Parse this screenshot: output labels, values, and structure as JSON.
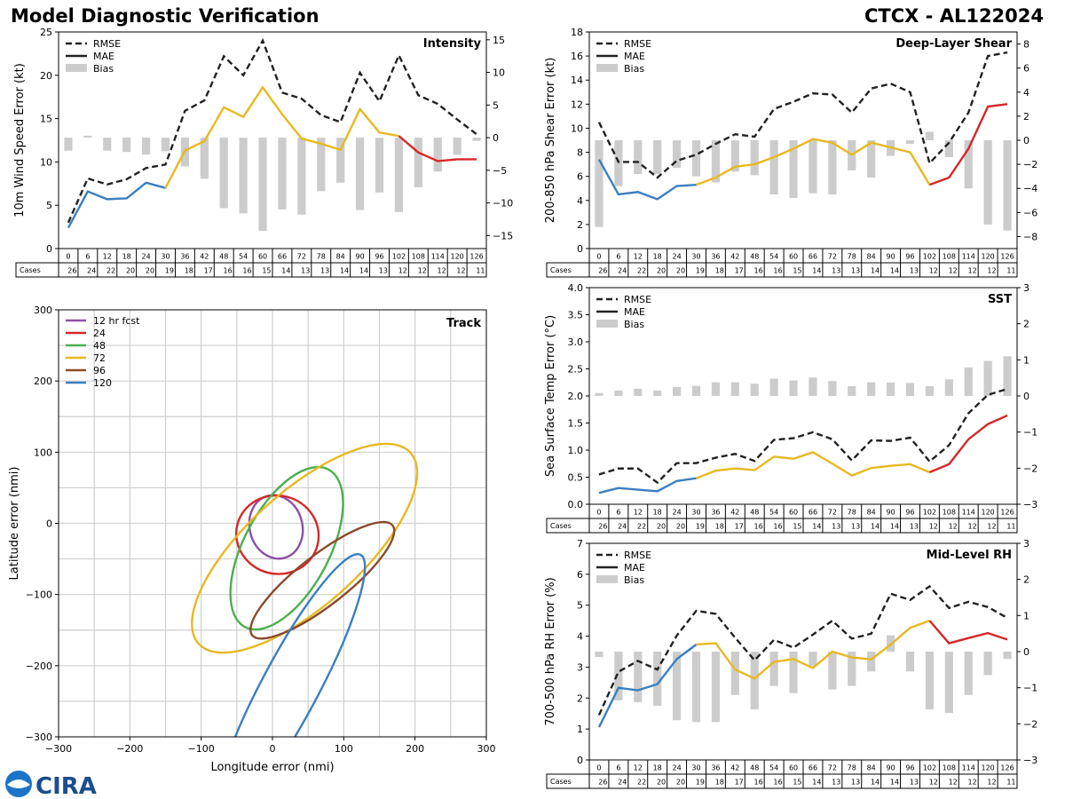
{
  "page": {
    "title": "Model Diagnostic Verification",
    "storm": "CTCX - AL122024",
    "logo_text": "CIRA"
  },
  "colors": {
    "rmse": "#222222",
    "bias": "#cccccc",
    "mae_early": "#3a7fc0",
    "mae_mid": "#e8b820",
    "mae_late": "#d62728",
    "track": [
      "#8e4ea8",
      "#d62728",
      "#4caf50",
      "#e8b820",
      "#8b4a2b",
      "#3a7fc0"
    ]
  },
  "chart_data": [
    {
      "id": "intensity",
      "type": "line+bar",
      "title": "Intensity",
      "ylabel": "10m Wind Speed Error (kt)",
      "ylim": [
        0,
        25
      ],
      "yticks": [
        0,
        5,
        10,
        15,
        20,
        25
      ],
      "y2lim": [
        -17,
        16.2
      ],
      "y2ticks": [
        -15,
        -10,
        -5,
        0,
        5,
        10,
        15
      ],
      "legend": [
        "RMSE",
        "MAE",
        "Bias"
      ],
      "legend_position": "top-left",
      "hours": [
        0,
        6,
        12,
        18,
        24,
        30,
        36,
        42,
        48,
        54,
        60,
        66,
        72,
        78,
        84,
        90,
        96,
        102,
        108,
        114,
        120,
        126
      ],
      "cases": [
        26,
        24,
        22,
        20,
        20,
        19,
        18,
        17,
        16,
        16,
        15,
        14,
        13,
        13,
        14,
        14,
        13,
        12,
        12,
        12,
        12,
        11
      ],
      "cases_label": "Cases",
      "rmse": [
        3.0,
        8.1,
        7.4,
        8.0,
        9.3,
        9.7,
        15.9,
        17.1,
        22.2,
        20.0,
        24.0,
        18.0,
        17.3,
        15.4,
        14.6,
        20.3,
        17.0,
        22.3,
        17.7,
        16.7,
        14.9,
        13.2
      ],
      "mae": [
        2.4,
        6.6,
        5.7,
        5.8,
        7.6,
        7.0,
        11.3,
        12.4,
        16.3,
        15.2,
        18.6,
        15.5,
        12.7,
        12.1,
        11.4,
        16.1,
        13.4,
        13.0,
        11.1,
        10.1,
        10.3,
        10.3
      ],
      "bias": [
        -2.0,
        0.3,
        -2.0,
        -2.2,
        -2.6,
        -2.1,
        -4.4,
        -6.3,
        -10.8,
        -11.6,
        -14.3,
        -11.0,
        -11.8,
        -8.2,
        -6.9,
        -11.1,
        -8.4,
        -11.4,
        -7.6,
        -5.2,
        -2.6,
        -0.5
      ]
    },
    {
      "id": "shear",
      "type": "line+bar",
      "title": "Deep-Layer Shear",
      "ylabel": "200-850 hPa Shear Error (kt)",
      "ylim": [
        0,
        18
      ],
      "yticks": [
        0,
        2,
        4,
        6,
        8,
        10,
        12,
        14,
        16,
        18
      ],
      "y2lim": [
        -9,
        9
      ],
      "y2ticks": [
        -8,
        -6,
        -4,
        -2,
        0,
        2,
        4,
        6,
        8
      ],
      "legend": [
        "RMSE",
        "MAE",
        "Bias"
      ],
      "legend_position": "top-left",
      "hours": [
        0,
        6,
        12,
        18,
        24,
        30,
        36,
        42,
        48,
        54,
        60,
        66,
        72,
        78,
        84,
        90,
        96,
        102,
        108,
        114,
        120,
        126
      ],
      "cases": [
        26,
        24,
        22,
        20,
        20,
        19,
        18,
        17,
        16,
        16,
        15,
        14,
        13,
        13,
        14,
        14,
        13,
        12,
        12,
        12,
        12,
        11
      ],
      "cases_label": "Cases",
      "rmse": [
        10.5,
        7.2,
        7.2,
        5.9,
        7.3,
        7.8,
        8.7,
        9.5,
        9.3,
        11.6,
        12.2,
        12.9,
        12.8,
        11.3,
        13.3,
        13.7,
        13.0,
        7.1,
        8.8,
        11.3,
        16.0,
        16.3
      ],
      "mae": [
        7.4,
        4.5,
        4.7,
        4.1,
        5.2,
        5.3,
        5.9,
        6.8,
        7.0,
        7.6,
        8.3,
        9.1,
        8.8,
        7.8,
        8.8,
        8.4,
        8.0,
        5.3,
        5.9,
        8.3,
        11.8,
        12.0
      ],
      "bias": [
        -7.2,
        -3.8,
        -2.8,
        -2.8,
        -2.3,
        -3.0,
        -3.5,
        -2.6,
        -2.9,
        -4.5,
        -4.8,
        -4.4,
        -4.5,
        -2.5,
        -3.1,
        -1.3,
        -0.3,
        0.7,
        -1.4,
        -4.0,
        -7.0,
        -7.5
      ]
    },
    {
      "id": "sst",
      "type": "line+bar",
      "title": "SST",
      "ylabel": "Sea Surface Temp Error (°C)",
      "ylim": [
        0,
        4
      ],
      "yticks": [
        "0.0",
        "0.5",
        "1.0",
        "1.5",
        "2.0",
        "2.5",
        "3.0",
        "3.5",
        "4.0"
      ],
      "y2lim": [
        -3,
        3
      ],
      "y2ticks": [
        -3,
        -2,
        -1,
        0,
        1,
        2,
        3
      ],
      "legend": [
        "RMSE",
        "MAE",
        "Bias"
      ],
      "legend_position": "top-left",
      "hours": [
        0,
        6,
        12,
        18,
        24,
        30,
        36,
        42,
        48,
        54,
        60,
        66,
        72,
        78,
        84,
        90,
        96,
        102,
        108,
        114,
        120,
        126
      ],
      "cases": [
        26,
        24,
        22,
        20,
        20,
        19,
        18,
        17,
        16,
        16,
        15,
        14,
        13,
        13,
        14,
        14,
        13,
        12,
        12,
        12,
        12,
        11
      ],
      "cases_label": "Cases",
      "rmse": [
        0.55,
        0.66,
        0.66,
        0.4,
        0.76,
        0.76,
        0.86,
        0.93,
        0.8,
        1.19,
        1.22,
        1.33,
        1.2,
        0.81,
        1.18,
        1.17,
        1.23,
        0.79,
        1.09,
        1.68,
        2.02,
        2.13
      ],
      "mae": [
        0.21,
        0.3,
        0.27,
        0.24,
        0.43,
        0.48,
        0.62,
        0.66,
        0.63,
        0.88,
        0.84,
        0.96,
        0.75,
        0.53,
        0.67,
        0.71,
        0.74,
        0.59,
        0.74,
        1.2,
        1.48,
        1.64
      ],
      "bias": [
        0.08,
        0.15,
        0.2,
        0.15,
        0.25,
        0.28,
        0.38,
        0.38,
        0.34,
        0.48,
        0.43,
        0.51,
        0.41,
        0.27,
        0.38,
        0.37,
        0.36,
        0.27,
        0.46,
        0.79,
        0.97,
        1.1
      ]
    },
    {
      "id": "rh",
      "type": "line+bar",
      "title": "Mid-Level RH",
      "ylabel": "700-500 hPa RH Error (%)",
      "ylim": [
        0,
        7
      ],
      "yticks": [
        0,
        1,
        2,
        3,
        4,
        5,
        6,
        7
      ],
      "y2lim": [
        -3,
        3
      ],
      "y2ticks": [
        -3,
        -2,
        -1,
        0,
        1,
        2,
        3
      ],
      "legend": [
        "RMSE",
        "MAE",
        "Bias"
      ],
      "legend_position": "top-left",
      "hours": [
        0,
        6,
        12,
        18,
        24,
        30,
        36,
        42,
        48,
        54,
        60,
        66,
        72,
        78,
        84,
        90,
        96,
        102,
        108,
        114,
        120,
        126
      ],
      "cases": [
        26,
        24,
        22,
        20,
        20,
        19,
        18,
        17,
        16,
        16,
        15,
        14,
        13,
        13,
        14,
        14,
        13,
        12,
        12,
        12,
        12,
        11
      ],
      "cases_label": "Cases",
      "rmse": [
        1.45,
        2.85,
        3.2,
        2.92,
        4.02,
        4.82,
        4.72,
        3.95,
        3.22,
        3.88,
        3.63,
        4.05,
        4.5,
        3.92,
        4.08,
        5.37,
        5.17,
        5.61,
        4.91,
        5.11,
        4.94,
        4.59
      ],
      "mae": [
        1.06,
        2.33,
        2.25,
        2.45,
        3.26,
        3.73,
        3.77,
        2.92,
        2.63,
        3.17,
        3.26,
        2.97,
        3.5,
        3.31,
        3.25,
        3.73,
        4.27,
        4.5,
        3.77,
        3.94,
        4.1,
        3.89
      ],
      "bias": [
        -0.15,
        -1.35,
        -1.4,
        -1.5,
        -1.9,
        -1.95,
        -1.95,
        -1.2,
        -1.6,
        -0.95,
        -1.15,
        -0.4,
        -1.05,
        -0.95,
        -0.55,
        0.45,
        -0.55,
        -1.6,
        -1.7,
        -1.2,
        -0.65,
        -0.2
      ]
    },
    {
      "id": "track",
      "type": "ellipse",
      "title": "Track",
      "xlabel": "Longitude error (nmi)",
      "ylabel": "Latitude error (nmi)",
      "xlim": [
        -300,
        300
      ],
      "ylim": [
        -300,
        300
      ],
      "xticks": [
        "−300",
        "−200",
        "−100",
        "0",
        "100",
        "200",
        "300"
      ],
      "yticks": [
        "−300",
        "−200",
        "−100",
        "0",
        "100",
        "200",
        "300"
      ],
      "grid": true,
      "legend": [
        "12 hr fcst",
        "24",
        "48",
        "72",
        "96",
        "120"
      ],
      "legend_position": "top-left",
      "ellipses": [
        {
          "label": "12 hr fcst",
          "cx": 5,
          "cy": -5,
          "a": 45,
          "b": 37,
          "angle": -75
        },
        {
          "label": "24",
          "cx": 7,
          "cy": -16,
          "a": 58,
          "b": 55,
          "angle": -15
        },
        {
          "label": "48",
          "cx": 20,
          "cy": -35,
          "a": 125,
          "b": 60,
          "angle": 62
        },
        {
          "label": "72",
          "cx": 45,
          "cy": -35,
          "a": 200,
          "b": 80,
          "angle": 42
        },
        {
          "label": "96",
          "cx": 70,
          "cy": -80,
          "a": 125,
          "b": 35,
          "angle": 38
        },
        {
          "label": "120",
          "cx": 25,
          "cy": -230,
          "a": 210,
          "b": 40,
          "angle": 62
        }
      ]
    }
  ]
}
